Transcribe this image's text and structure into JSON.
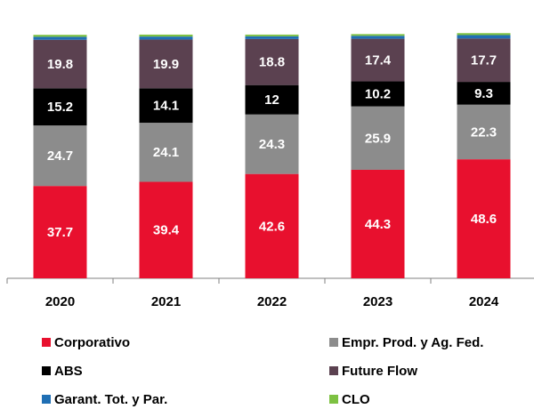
{
  "chart_data": {
    "type": "stacked_bar",
    "categories": [
      "2020",
      "2021",
      "2022",
      "2023",
      "2024"
    ],
    "series": [
      {
        "name": "Corporativo",
        "color": "#e8102e",
        "values": [
          37.7,
          39.4,
          42.6,
          44.3,
          48.6
        ],
        "labeled": true
      },
      {
        "name": "Empr. Prod. y Ag. Fed.",
        "color": "#8c8c8c",
        "values": [
          24.7,
          24.1,
          24.3,
          25.9,
          22.3
        ],
        "labeled": true
      },
      {
        "name": "ABS",
        "color": "#000000",
        "values": [
          15.2,
          14.1,
          12.0,
          10.2,
          9.3
        ],
        "labeled": true
      },
      {
        "name": "Future Flow",
        "color": "#5b4150",
        "values": [
          19.8,
          19.9,
          18.8,
          17.4,
          17.7
        ],
        "labeled": true
      },
      {
        "name": "Garant. Tot. y Par.",
        "color": "#1f6fb4",
        "values": [
          1.2,
          1.2,
          1.1,
          1.2,
          1.4
        ],
        "labeled": false
      },
      {
        "name": "CLO",
        "color": "#7dc142",
        "values": [
          0.8,
          0.8,
          0.7,
          0.7,
          0.8
        ],
        "labeled": false
      }
    ],
    "ylim": [
      0,
      110
    ]
  }
}
